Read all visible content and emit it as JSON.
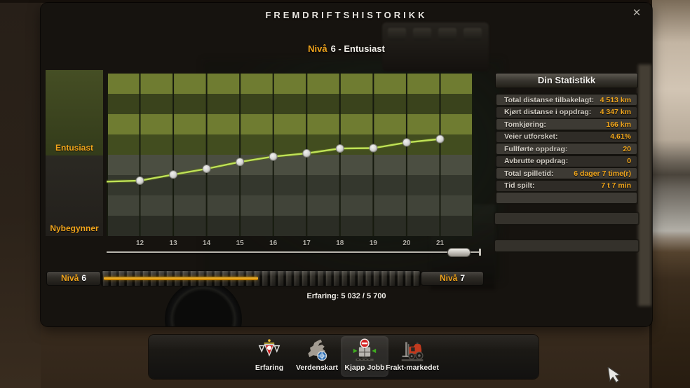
{
  "window": {
    "title": "FREMDRIFTSHISTORIKK",
    "close_glyph": "✕"
  },
  "subtitle": {
    "prefix": "Nivå",
    "rest": "6 - Entusiast"
  },
  "chart_data": {
    "type": "line",
    "title": "Nivå 6 - Entusiast",
    "x_ticks": [
      "12",
      "13",
      "14",
      "15",
      "16",
      "17",
      "18",
      "19",
      "20",
      "21"
    ],
    "points_frac": [
      0.341,
      0.378,
      0.414,
      0.456,
      0.489,
      0.509,
      0.539,
      0.541,
      0.576,
      0.597
    ],
    "edge_start_frac": 0.335,
    "y_bands": [
      {
        "label": "Entusiast"
      },
      {
        "label": "Nybegynner"
      }
    ],
    "row_colors": [
      "#6f7c31",
      "#3a431c",
      "#6f7c31",
      "#424d1f",
      "#4b4e41",
      "#34372d",
      "#414439",
      "#2b2d25"
    ],
    "line_color": "#bfe256",
    "point_fill": "#d4d4d2",
    "point_stroke": "#85857f",
    "grid_color": "#161a0e",
    "legend": "none",
    "grid": true
  },
  "stats": {
    "header": "Din Statistikk",
    "rows": [
      {
        "label": "Total distanse tilbakelagt:",
        "value": "4 513 km"
      },
      {
        "label": "Kjørt distanse i oppdrag:",
        "value": "4 347 km"
      },
      {
        "label": "Tomkjøring:",
        "value": "166 km"
      },
      {
        "label": "Veier utforsket:",
        "value": "4.61%"
      },
      {
        "label": "Fullførte oppdrag:",
        "value": "20"
      },
      {
        "label": "Avbrutte oppdrag:",
        "value": "0"
      },
      {
        "label": "Total spilletid:",
        "value": "6 dager 7 time(r)"
      },
      {
        "label": "Tid spilt:",
        "value": "7 t 7 min"
      },
      {
        "label": "",
        "value": ""
      }
    ]
  },
  "xp": {
    "left_prefix": "Nivå",
    "left_number": "6",
    "right_prefix": "Nivå",
    "right_number": "7",
    "progress_percent": 49,
    "caption": "Erfaring: 5 032 / 5 700"
  },
  "toolbar": {
    "items": [
      {
        "label": "Erfaring",
        "selected": false
      },
      {
        "label": "Verdenskart",
        "selected": false
      },
      {
        "label": "Kjapp Jobb",
        "selected": true
      },
      {
        "label": "Frakt-markedet",
        "selected": false
      }
    ]
  },
  "colors": {
    "accent_orange": "#f0a41c",
    "text_white": "#f2efe9",
    "text_gray": "#b2afa7",
    "dialog_bg": "#16130f",
    "xp_fill": "#f0a41c"
  }
}
